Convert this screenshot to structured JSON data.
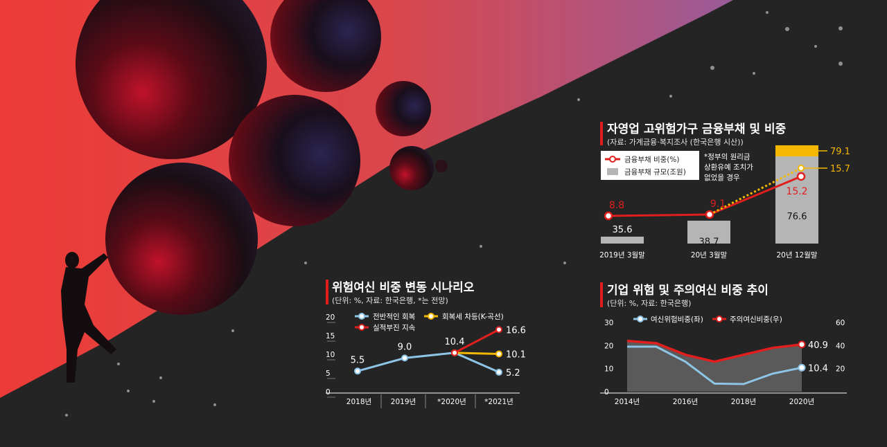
{
  "colors": {
    "background": "#242424",
    "sky_red": "#e8463f",
    "sky_purple": "#a45f96",
    "accent_red": "#e01e1e",
    "accent_yellow": "#f5b800",
    "light_blue": "#8ec5e6",
    "bar_gray": "#b5b5b5"
  },
  "chart_data": [
    {
      "id": "debt",
      "type": "bar",
      "title": "자영업 고위험가구 금융부채 및 비중",
      "subtitle": "(자료: 가계금융·복지조사 (한국은행 시산))",
      "legend": [
        "금융부채 비중(%)",
        "금융부채 규모(조원)"
      ],
      "annotation": [
        "*정부의 원리금",
        "상환유예 조치가",
        "없었을 경우"
      ],
      "categories": [
        "2019년 3월말",
        "20년 3월말",
        "20년 12월말"
      ],
      "series": [
        {
          "name": "금융부채 규모(조원)",
          "kind": "bar",
          "values": [
            35.6,
            38.7,
            76.6
          ],
          "labels": [
            "35.6",
            "38.7",
            "76.6"
          ]
        },
        {
          "name": "금융부채 비중(%)",
          "kind": "line",
          "values": [
            8.8,
            9.1,
            15.2
          ],
          "labels": [
            "8.8",
            "9.1",
            "15.2"
          ]
        }
      ],
      "scenario_bar_extra": {
        "value": 79.1,
        "label": "79.1"
      },
      "scenario_share": {
        "value": 15.7,
        "label": "15.7"
      }
    },
    {
      "id": "scenario",
      "type": "line",
      "title": "위험여신 비중 변동 시나리오",
      "subtitle": "(단위: %, 자료: 한국은행, *는 전망)",
      "categories": [
        "2018년",
        "2019년",
        "*2020년",
        "*2021년"
      ],
      "y_ticks": [
        "20",
        "15",
        "10",
        "5",
        "0"
      ],
      "ylim": [
        0,
        20
      ],
      "series": [
        {
          "name": "전반적인 회복",
          "values": [
            5.5,
            9.0,
            10.4,
            5.2
          ],
          "labels": [
            "5.5",
            "9.0",
            "10.4",
            "5.2"
          ]
        },
        {
          "name": "회복세 차등(K-곡선)",
          "values": [
            null,
            null,
            10.4,
            10.1
          ],
          "labels": [
            "",
            "",
            "",
            "10.1"
          ]
        },
        {
          "name": "실적부진 지속",
          "values": [
            null,
            null,
            10.4,
            16.6
          ],
          "labels": [
            "",
            "",
            "",
            "16.6"
          ]
        }
      ]
    },
    {
      "id": "corporate",
      "type": "area",
      "title": "기업 위험 및 주의여신 비중 추이",
      "subtitle": "(단위: %, 자료: 한국은행)",
      "categories": [
        "2014년",
        "2016년",
        "2018년",
        "2020년"
      ],
      "y_left_ticks": [
        "30",
        "20",
        "10",
        "0"
      ],
      "y_right_ticks": [
        "60",
        "40",
        "20"
      ],
      "ylim_left": [
        0,
        30
      ],
      "ylim_right": [
        0,
        60
      ],
      "series": [
        {
          "name": "여신위험비중(좌)",
          "axis": "left",
          "x": [
            2014,
            2015,
            2016,
            2017,
            2018,
            2019,
            2020
          ],
          "values": [
            19.5,
            19.5,
            13.0,
            3.5,
            3.3,
            7.8,
            10.4
          ],
          "end_label": "10.4"
        },
        {
          "name": "주의여신비중(우)",
          "axis": "right",
          "x": [
            2014,
            2015,
            2016,
            2017,
            2018,
            2019,
            2020
          ],
          "values": [
            44.0,
            42.0,
            32.0,
            26.0,
            32.0,
            38.0,
            40.9
          ],
          "end_label": "40.9"
        }
      ]
    }
  ]
}
